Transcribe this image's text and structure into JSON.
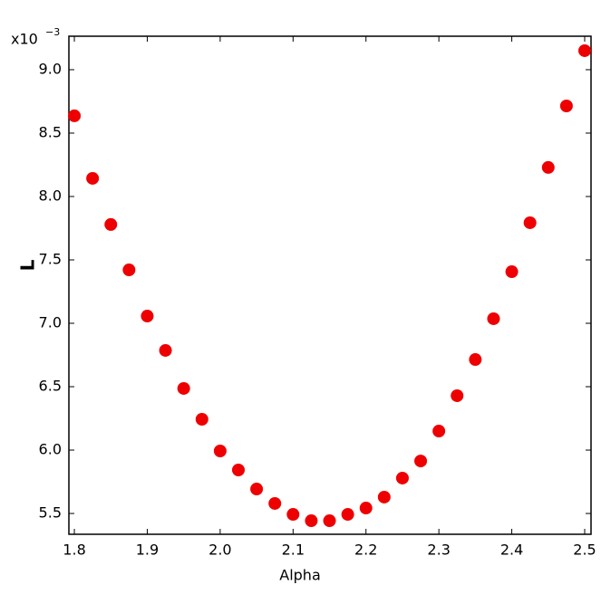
{
  "chart_data": {
    "type": "scatter",
    "x_label": "Alpha",
    "y_label": "L",
    "y_multiplier": "x10",
    "y_exponent": "−3",
    "color": "#ee0000",
    "x": [
      1.8,
      1.825,
      1.85,
      1.875,
      1.9,
      1.925,
      1.95,
      1.975,
      2.0,
      2.025,
      2.05,
      2.075,
      2.1,
      2.125,
      2.15,
      2.175,
      2.2,
      2.225,
      2.25,
      2.275,
      2.3,
      2.325,
      2.35,
      2.375,
      2.4,
      2.425,
      2.45,
      2.475,
      2.5
    ],
    "values": [
      8.636,
      8.143,
      7.779,
      7.421,
      7.057,
      6.786,
      6.486,
      6.243,
      5.993,
      5.843,
      5.693,
      5.579,
      5.493,
      5.443,
      5.443,
      5.493,
      5.543,
      5.629,
      5.779,
      5.914,
      6.15,
      6.429,
      6.714,
      7.036,
      7.407,
      7.793,
      8.229,
      8.714,
      9.15
    ],
    "xlim": [
      1.7925,
      2.5087
    ],
    "ylim": [
      5.336,
      9.264
    ],
    "xticks": [
      1.8,
      1.9,
      {
        "value": 2,
        "label": "2.0"
      },
      2.1,
      2.2,
      2.3,
      2.4,
      2.5
    ],
    "yticks": [
      {
        "value": 5.5,
        "label": "5.5"
      },
      {
        "value": 6,
        "label": "6.0"
      },
      {
        "value": 6.5,
        "label": "6.5"
      },
      {
        "value": 7,
        "label": "7.0"
      },
      {
        "value": 7.5,
        "label": "7.5"
      },
      {
        "value": 8,
        "label": "8.0"
      },
      {
        "value": 8.5,
        "label": "8.5"
      },
      {
        "value": 9,
        "label": "9.0"
      }
    ]
  }
}
